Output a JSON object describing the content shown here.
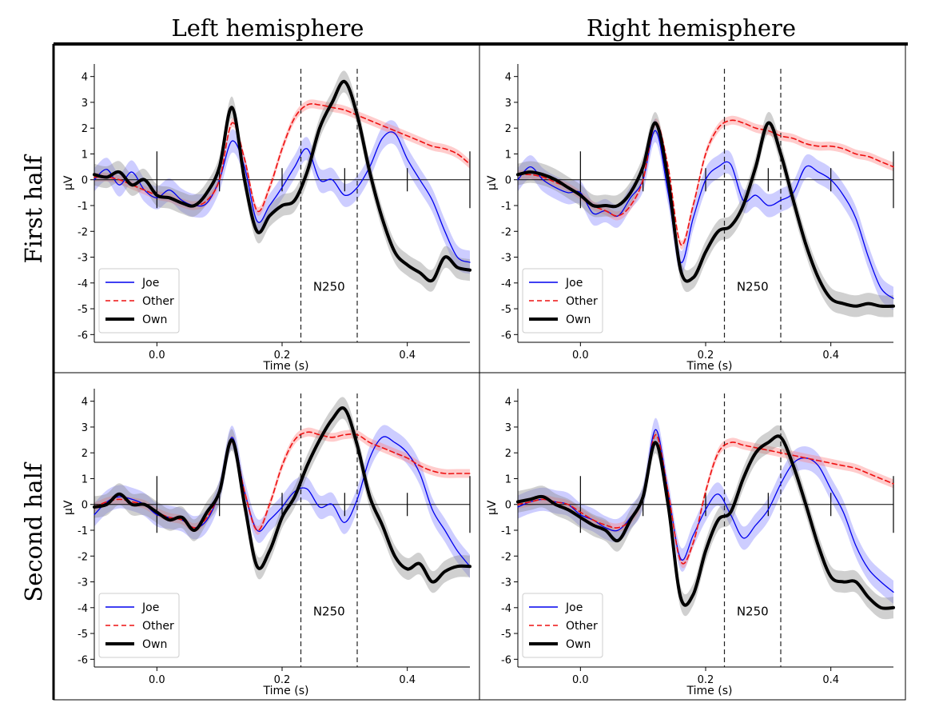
{
  "column_headers": [
    "Left hemisphere",
    "Right hemisphere"
  ],
  "row_headers": [
    "First half",
    "Second half"
  ],
  "colors": {
    "joe": "#0000ee",
    "other": "#ee1111",
    "own": "#000000",
    "joe_band": "#5a5aff",
    "other_band": "#ff8080",
    "own_band": "#8a8a8a"
  },
  "chart_data": [
    {
      "type": "line",
      "panel": "First half - Left hemisphere",
      "xlabel": "Time (s)",
      "ylabel": "µV",
      "xlim": [
        -0.1,
        0.5
      ],
      "ylim": [
        -6.3,
        4.3
      ],
      "xticks": [
        "0.0",
        "0.2",
        "0.4"
      ],
      "xtick_values": [
        0.0,
        0.2,
        0.4
      ],
      "yticks": [
        "4",
        "3",
        "2",
        "1",
        "0",
        "-1",
        "-2",
        "-3",
        "-4",
        "-5",
        "-6"
      ],
      "annotation": {
        "text": "N250",
        "window": [
          0.23,
          0.32
        ]
      },
      "legend": [
        "Joe",
        "Other",
        "Own"
      ],
      "series": [
        {
          "name": "Joe",
          "x": [
            -0.1,
            -0.08,
            -0.06,
            -0.04,
            -0.02,
            0.0,
            0.02,
            0.04,
            0.06,
            0.08,
            0.1,
            0.12,
            0.14,
            0.16,
            0.18,
            0.2,
            0.22,
            0.24,
            0.26,
            0.28,
            0.3,
            0.32,
            0.34,
            0.36,
            0.38,
            0.4,
            0.42,
            0.44,
            0.46,
            0.48,
            0.5
          ],
          "values": [
            0.0,
            0.4,
            -0.2,
            0.3,
            -0.4,
            -0.7,
            -0.4,
            -0.8,
            -1.0,
            -0.9,
            0.0,
            1.5,
            0.5,
            -1.6,
            -1.0,
            -0.3,
            0.5,
            1.2,
            0.0,
            0.0,
            -0.6,
            -0.3,
            0.5,
            1.6,
            1.8,
            0.8,
            0.0,
            -0.8,
            -2.0,
            -3.0,
            -3.2
          ]
        },
        {
          "name": "Other",
          "x": [
            -0.1,
            -0.08,
            -0.06,
            -0.04,
            -0.02,
            0.0,
            0.02,
            0.04,
            0.06,
            0.08,
            0.1,
            0.12,
            0.14,
            0.16,
            0.18,
            0.2,
            0.22,
            0.24,
            0.26,
            0.28,
            0.3,
            0.32,
            0.34,
            0.36,
            0.38,
            0.4,
            0.42,
            0.44,
            0.46,
            0.48,
            0.5
          ],
          "values": [
            0.1,
            0.1,
            0.0,
            -0.2,
            -0.4,
            -0.6,
            -0.7,
            -0.9,
            -1.0,
            -0.8,
            0.0,
            2.2,
            0.8,
            -1.2,
            -0.3,
            1.2,
            2.4,
            2.9,
            2.9,
            2.8,
            2.7,
            2.5,
            2.3,
            2.1,
            1.9,
            1.7,
            1.5,
            1.3,
            1.2,
            1.0,
            0.6
          ]
        },
        {
          "name": "Own",
          "x": [
            -0.1,
            -0.08,
            -0.06,
            -0.04,
            -0.02,
            0.0,
            0.02,
            0.04,
            0.06,
            0.08,
            0.1,
            0.12,
            0.14,
            0.16,
            0.18,
            0.2,
            0.22,
            0.24,
            0.26,
            0.28,
            0.3,
            0.32,
            0.34,
            0.36,
            0.38,
            0.4,
            0.42,
            0.44,
            0.46,
            0.48,
            0.5
          ],
          "values": [
            0.2,
            0.1,
            0.3,
            -0.2,
            0.0,
            -0.6,
            -0.7,
            -0.9,
            -1.0,
            -0.5,
            0.5,
            2.8,
            0.0,
            -2.0,
            -1.4,
            -1.0,
            -0.8,
            0.3,
            2.0,
            3.0,
            3.8,
            2.5,
            0.3,
            -1.5,
            -2.8,
            -3.3,
            -3.6,
            -3.9,
            -3.0,
            -3.4,
            -3.5
          ]
        }
      ]
    },
    {
      "type": "line",
      "panel": "First half - Right hemisphere",
      "xlabel": "Time (s)",
      "ylabel": "µV",
      "xlim": [
        -0.1,
        0.5
      ],
      "ylim": [
        -6.3,
        4.3
      ],
      "xticks": [
        "0.0",
        "0.2",
        "0.4"
      ],
      "xtick_values": [
        0.0,
        0.2,
        0.4
      ],
      "yticks": [
        "4",
        "3",
        "2",
        "1",
        "0",
        "-1",
        "-2",
        "-3",
        "-4",
        "-5",
        "-6"
      ],
      "annotation": {
        "text": "N250",
        "window": [
          0.23,
          0.32
        ]
      },
      "legend": [
        "Joe",
        "Other",
        "Own"
      ],
      "series": [
        {
          "name": "Joe",
          "x": [
            -0.1,
            -0.08,
            -0.06,
            -0.04,
            -0.02,
            0.0,
            0.02,
            0.04,
            0.06,
            0.08,
            0.1,
            0.12,
            0.14,
            0.16,
            0.18,
            0.2,
            0.22,
            0.24,
            0.26,
            0.28,
            0.3,
            0.32,
            0.34,
            0.36,
            0.38,
            0.4,
            0.42,
            0.44,
            0.46,
            0.48,
            0.5
          ],
          "values": [
            0.0,
            0.5,
            0.0,
            -0.3,
            -0.5,
            -0.5,
            -1.3,
            -1.2,
            -1.4,
            -0.7,
            0.0,
            1.9,
            -0.5,
            -3.2,
            -1.5,
            0.0,
            0.5,
            0.6,
            -0.8,
            -0.6,
            -1.0,
            -0.8,
            -0.5,
            0.5,
            0.3,
            0.0,
            -0.6,
            -1.5,
            -3.0,
            -4.2,
            -4.6
          ]
        },
        {
          "name": "Other",
          "x": [
            -0.1,
            -0.08,
            -0.06,
            -0.04,
            -0.02,
            0.0,
            0.02,
            0.04,
            0.06,
            0.08,
            0.1,
            0.12,
            0.14,
            0.16,
            0.18,
            0.2,
            0.22,
            0.24,
            0.26,
            0.28,
            0.3,
            0.32,
            0.34,
            0.36,
            0.38,
            0.4,
            0.42,
            0.44,
            0.46,
            0.48,
            0.5
          ],
          "values": [
            0.2,
            0.2,
            0.1,
            -0.1,
            -0.3,
            -0.6,
            -1.0,
            -1.2,
            -1.4,
            -1.0,
            0.0,
            2.2,
            0.5,
            -2.5,
            -1.0,
            1.0,
            2.0,
            2.3,
            2.2,
            2.0,
            1.9,
            1.7,
            1.6,
            1.4,
            1.3,
            1.3,
            1.2,
            1.0,
            0.9,
            0.7,
            0.5
          ]
        },
        {
          "name": "Own",
          "x": [
            -0.1,
            -0.08,
            -0.06,
            -0.04,
            -0.02,
            0.0,
            0.02,
            0.04,
            0.06,
            0.08,
            0.1,
            0.12,
            0.14,
            0.16,
            0.18,
            0.2,
            0.22,
            0.24,
            0.26,
            0.28,
            0.3,
            0.32,
            0.34,
            0.36,
            0.38,
            0.4,
            0.42,
            0.44,
            0.46,
            0.48,
            0.5
          ],
          "values": [
            0.2,
            0.3,
            0.2,
            0.0,
            -0.3,
            -0.6,
            -1.0,
            -1.0,
            -1.0,
            -0.5,
            0.5,
            2.2,
            0.0,
            -3.5,
            -3.8,
            -2.8,
            -2.0,
            -1.8,
            -1.0,
            0.5,
            2.2,
            1.0,
            -0.8,
            -2.5,
            -3.8,
            -4.6,
            -4.8,
            -4.9,
            -4.8,
            -4.9,
            -4.9
          ]
        }
      ]
    },
    {
      "type": "line",
      "panel": "Second half - Left hemisphere",
      "xlabel": "Time (s)",
      "ylabel": "µV",
      "xlim": [
        -0.1,
        0.5
      ],
      "ylim": [
        -6.3,
        4.3
      ],
      "xticks": [
        "0.0",
        "0.2",
        "0.4"
      ],
      "xtick_values": [
        0.0,
        0.2,
        0.4
      ],
      "yticks": [
        "4",
        "3",
        "2",
        "1",
        "0",
        "-1",
        "-2",
        "-3",
        "-4",
        "-5",
        "-6"
      ],
      "annotation": {
        "text": "N250",
        "window": [
          0.23,
          0.32
        ]
      },
      "legend": [
        "Joe",
        "Other",
        "Own"
      ],
      "series": [
        {
          "name": "Joe",
          "x": [
            -0.1,
            -0.08,
            -0.06,
            -0.04,
            -0.02,
            0.0,
            0.02,
            0.04,
            0.06,
            0.08,
            0.1,
            0.12,
            0.14,
            0.16,
            0.18,
            0.2,
            0.22,
            0.24,
            0.26,
            0.28,
            0.3,
            0.32,
            0.34,
            0.36,
            0.38,
            0.4,
            0.42,
            0.44,
            0.46,
            0.48,
            0.5
          ],
          "values": [
            -0.4,
            0.1,
            0.3,
            0.2,
            0.0,
            -0.4,
            -0.5,
            -0.6,
            -0.9,
            -0.6,
            0.5,
            2.6,
            0.5,
            -1.0,
            -0.6,
            -0.1,
            0.5,
            0.6,
            -0.1,
            0.0,
            -0.7,
            0.2,
            1.8,
            2.6,
            2.4,
            2.0,
            1.2,
            -0.2,
            -1.0,
            -1.8,
            -2.4
          ]
        },
        {
          "name": "Other",
          "x": [
            -0.1,
            -0.08,
            -0.06,
            -0.04,
            -0.02,
            0.0,
            0.02,
            0.04,
            0.06,
            0.08,
            0.1,
            0.12,
            0.14,
            0.16,
            0.18,
            0.2,
            0.22,
            0.24,
            0.26,
            0.28,
            0.3,
            0.32,
            0.34,
            0.36,
            0.38,
            0.4,
            0.42,
            0.44,
            0.46,
            0.48,
            0.5
          ],
          "values": [
            -0.1,
            0.1,
            0.2,
            0.1,
            0.0,
            -0.3,
            -0.5,
            -0.6,
            -0.9,
            -0.5,
            0.5,
            2.5,
            0.5,
            -1.0,
            0.0,
            1.5,
            2.5,
            2.8,
            2.7,
            2.6,
            2.7,
            2.7,
            2.4,
            2.2,
            2.0,
            1.8,
            1.5,
            1.3,
            1.2,
            1.2,
            1.2
          ]
        },
        {
          "name": "Own",
          "x": [
            -0.1,
            -0.08,
            -0.06,
            -0.04,
            -0.02,
            0.0,
            0.02,
            0.04,
            0.06,
            0.08,
            0.1,
            0.12,
            0.14,
            0.16,
            0.18,
            0.2,
            0.22,
            0.24,
            0.26,
            0.28,
            0.3,
            0.32,
            0.34,
            0.36,
            0.38,
            0.4,
            0.42,
            0.44,
            0.46,
            0.48,
            0.5
          ],
          "values": [
            -0.1,
            0.0,
            0.4,
            0.0,
            0.0,
            -0.3,
            -0.6,
            -0.5,
            -1.0,
            -0.3,
            0.5,
            2.5,
            0.0,
            -2.4,
            -1.8,
            -0.5,
            0.3,
            1.5,
            2.5,
            3.3,
            3.7,
            2.3,
            0.3,
            -0.8,
            -2.0,
            -2.5,
            -2.3,
            -3.0,
            -2.6,
            -2.4,
            -2.4
          ]
        }
      ]
    },
    {
      "type": "line",
      "panel": "Second half - Right hemisphere",
      "xlabel": "Time (s)",
      "ylabel": "µV",
      "xlim": [
        -0.1,
        0.5
      ],
      "ylim": [
        -6.3,
        4.3
      ],
      "xticks": [
        "0.0",
        "0.2",
        "0.4"
      ],
      "xtick_values": [
        0.0,
        0.2,
        0.4
      ],
      "yticks": [
        "4",
        "3",
        "2",
        "1",
        "0",
        "-1",
        "-2",
        "-3",
        "-4",
        "-5",
        "-6"
      ],
      "annotation": {
        "text": "N250",
        "window": [
          0.23,
          0.32
        ]
      },
      "legend": [
        "Joe",
        "Other",
        "Own"
      ],
      "series": [
        {
          "name": "Joe",
          "x": [
            -0.1,
            -0.08,
            -0.06,
            -0.04,
            -0.02,
            0.0,
            0.02,
            0.04,
            0.06,
            0.08,
            0.1,
            0.12,
            0.14,
            0.16,
            0.18,
            0.2,
            0.22,
            0.24,
            0.26,
            0.28,
            0.3,
            0.32,
            0.34,
            0.36,
            0.38,
            0.4,
            0.42,
            0.44,
            0.46,
            0.48,
            0.5
          ],
          "values": [
            -0.1,
            0.1,
            0.2,
            0.1,
            0.0,
            -0.4,
            -0.6,
            -0.9,
            -1.0,
            -0.5,
            0.3,
            2.9,
            0.5,
            -2.1,
            -1.2,
            -0.2,
            0.4,
            -0.4,
            -1.3,
            -0.8,
            -0.2,
            0.8,
            1.6,
            1.8,
            1.5,
            0.6,
            -0.3,
            -1.6,
            -2.5,
            -3.0,
            -3.4
          ]
        },
        {
          "name": "Other",
          "x": [
            -0.1,
            -0.08,
            -0.06,
            -0.04,
            -0.02,
            0.0,
            0.02,
            0.04,
            0.06,
            0.08,
            0.1,
            0.12,
            0.14,
            0.16,
            0.18,
            0.2,
            0.22,
            0.24,
            0.26,
            0.28,
            0.3,
            0.32,
            0.34,
            0.36,
            0.38,
            0.4,
            0.42,
            0.44,
            0.46,
            0.48,
            0.5
          ],
          "values": [
            0.0,
            0.1,
            0.2,
            0.1,
            0.0,
            -0.3,
            -0.6,
            -0.8,
            -0.9,
            -0.6,
            0.3,
            2.7,
            0.5,
            -2.2,
            -1.5,
            0.5,
            2.0,
            2.4,
            2.3,
            2.2,
            2.1,
            2.0,
            1.9,
            1.8,
            1.7,
            1.6,
            1.5,
            1.4,
            1.2,
            1.0,
            0.8
          ]
        },
        {
          "name": "Own",
          "x": [
            -0.1,
            -0.08,
            -0.06,
            -0.04,
            -0.02,
            0.0,
            0.02,
            0.04,
            0.06,
            0.08,
            0.1,
            0.12,
            0.14,
            0.16,
            0.18,
            0.2,
            0.22,
            0.24,
            0.26,
            0.28,
            0.3,
            0.32,
            0.34,
            0.36,
            0.38,
            0.4,
            0.42,
            0.44,
            0.46,
            0.48,
            0.5
          ],
          "values": [
            0.1,
            0.2,
            0.3,
            0.0,
            -0.2,
            -0.5,
            -0.8,
            -1.0,
            -1.4,
            -0.6,
            0.3,
            2.4,
            0.0,
            -3.6,
            -3.5,
            -1.8,
            -0.6,
            -0.3,
            1.0,
            2.0,
            2.4,
            2.6,
            1.5,
            0.0,
            -1.6,
            -2.8,
            -3.0,
            -3.0,
            -3.6,
            -4.0,
            -4.0
          ]
        }
      ]
    }
  ]
}
